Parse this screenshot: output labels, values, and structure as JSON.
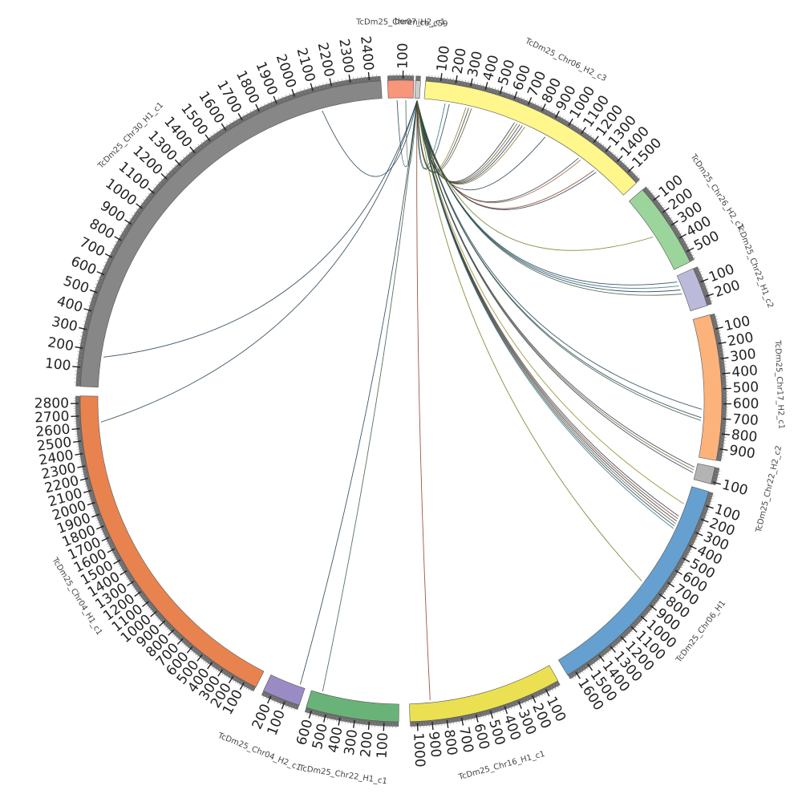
{
  "diagram": {
    "type": "circos",
    "segments": [
      {
        "id": "chr30",
        "label": "TcDm25_Chr30_H1_c1",
        "color": "#878787",
        "max": 2460,
        "ticks": [
          100,
          200,
          300,
          400,
          500,
          600,
          700,
          800,
          900,
          1000,
          1100,
          1200,
          1300,
          1400,
          1500,
          1600,
          1700,
          1800,
          1900,
          2000,
          2100,
          2200,
          2300,
          2400
        ]
      },
      {
        "id": "chr07",
        "label": "TcDm25_Chr07_H2_c1",
        "color": "#f7967a",
        "max": 170,
        "ticks": [
          100
        ]
      },
      {
        "id": "beren",
        "label": "berenice_c59",
        "color": "#cccccc",
        "max": 10,
        "ticks": []
      },
      {
        "id": "chr06h2",
        "label": "TcDm25_Chr06_H2_c3",
        "color": "#fff68c",
        "max": 1590,
        "ticks": [
          100,
          200,
          300,
          400,
          500,
          600,
          700,
          800,
          900,
          1000,
          1100,
          1200,
          1300,
          1400,
          1500
        ]
      },
      {
        "id": "chr26",
        "label": "TcDm25_Chr26_H2_c1",
        "color": "#9cd59c",
        "max": 570,
        "ticks": [
          100,
          200,
          300,
          400,
          500
        ]
      },
      {
        "id": "chr22h1c2",
        "label": "TcDm25_Chr22_H1_c2",
        "color": "#bcbada",
        "max": 260,
        "ticks": [
          100,
          200
        ]
      },
      {
        "id": "chr17",
        "label": "TcDm25_Chr17_H2_c1",
        "color": "#fcb27b",
        "max": 980,
        "ticks": [
          100,
          200,
          300,
          400,
          500,
          600,
          700,
          800,
          900
        ]
      },
      {
        "id": "chr22h2c2",
        "label": "TcDm25_Chr22_H2_c2",
        "color": "#b3b3b3",
        "max": 115,
        "ticks": [
          100
        ]
      },
      {
        "id": "chr06h1",
        "label": "TcDm25_Chr06_H1",
        "color": "#66a0d0",
        "max": 1660,
        "ticks": [
          100,
          200,
          300,
          400,
          500,
          600,
          700,
          800,
          900,
          1000,
          1100,
          1200,
          1300,
          1400,
          1500,
          1600
        ]
      },
      {
        "id": "chr16",
        "label": "TcDm25_Chr16_H1_c1",
        "color": "#ebe051",
        "max": 1050,
        "ticks": [
          100,
          200,
          300,
          400,
          500,
          600,
          700,
          800,
          900,
          1000
        ]
      },
      {
        "id": "chr22h1c1",
        "label": "TcDm25_Chr22_H1_c1",
        "color": "#6ab378",
        "max": 640,
        "ticks": [
          100,
          200,
          300,
          400,
          500,
          600
        ]
      },
      {
        "id": "chr04h2",
        "label": "TcDm25_Chr04_H2_c1",
        "color": "#9a8bc5",
        "max": 260,
        "ticks": [
          100,
          200
        ]
      },
      {
        "id": "chr04h1",
        "label": "TcDm25_Chr04_H1_c1",
        "color": "#e8834f",
        "max": 2860,
        "ticks": [
          100,
          200,
          300,
          400,
          500,
          600,
          700,
          800,
          900,
          1000,
          1100,
          1200,
          1300,
          1400,
          1500,
          1600,
          1700,
          1800,
          1900,
          2000,
          2100,
          2200,
          2300,
          2400,
          2500,
          2600,
          2700,
          2800
        ]
      }
    ],
    "links": [
      {
        "from": [
          "beren",
          5
        ],
        "to": [
          "chr30",
          2120
        ],
        "color": "#1f3b4d"
      },
      {
        "from": [
          "beren",
          5
        ],
        "to": [
          "chr30",
          170
        ],
        "color": "#1f3b4d"
      },
      {
        "from": [
          "beren",
          5
        ],
        "to": [
          "chr04h1",
          2640
        ],
        "color": "#1f3b4d"
      },
      {
        "from": [
          "beren",
          5
        ],
        "to": [
          "chr07",
          60
        ],
        "color": "#1f3b4d"
      },
      {
        "from": [
          "beren",
          5
        ],
        "to": [
          "chr07",
          120
        ],
        "color": "#3a5a40"
      },
      {
        "from": [
          "beren",
          5
        ],
        "to": [
          "chr06h2",
          150
        ],
        "color": "#2a6f7f"
      },
      {
        "from": [
          "beren",
          5
        ],
        "to": [
          "chr06h2",
          180
        ],
        "color": "#1f3b4d"
      },
      {
        "from": [
          "beren",
          5
        ],
        "to": [
          "chr06h2",
          300
        ],
        "color": "#8b6d1f"
      },
      {
        "from": [
          "beren",
          5
        ],
        "to": [
          "chr06h2",
          320
        ],
        "color": "#1f3b4d"
      },
      {
        "from": [
          "beren",
          5
        ],
        "to": [
          "chr06h2",
          340
        ],
        "color": "#5c4a1a"
      },
      {
        "from": [
          "beren",
          5
        ],
        "to": [
          "chr06h2",
          660
        ],
        "color": "#1f3b4d"
      },
      {
        "from": [
          "beren",
          5
        ],
        "to": [
          "chr06h2",
          680
        ],
        "color": "#7a5a1a"
      },
      {
        "from": [
          "beren",
          5
        ],
        "to": [
          "chr06h2",
          700
        ],
        "color": "#3a3a3a"
      },
      {
        "from": [
          "beren",
          5
        ],
        "to": [
          "chr06h2",
          720
        ],
        "color": "#1f3b4d"
      },
      {
        "from": [
          "beren",
          5
        ],
        "to": [
          "chr06h2",
          740
        ],
        "color": "#8b6d1f"
      },
      {
        "from": [
          "beren",
          5
        ],
        "to": [
          "chr06h2",
          900
        ],
        "color": "#1f3b4d"
      },
      {
        "from": [
          "beren",
          5
        ],
        "to": [
          "chr06h2",
          1180
        ],
        "color": "#1f3b4d"
      },
      {
        "from": [
          "beren",
          5
        ],
        "to": [
          "chr06h2",
          1200
        ],
        "color": "#a0522d"
      },
      {
        "from": [
          "beren",
          5
        ],
        "to": [
          "chr06h2",
          1320
        ],
        "color": "#8b3a1f"
      },
      {
        "from": [
          "beren",
          5
        ],
        "to": [
          "chr06h2",
          1340
        ],
        "color": "#1f3b4d"
      },
      {
        "from": [
          "beren",
          5
        ],
        "to": [
          "chr26",
          300
        ],
        "color": "#6b7a1f"
      },
      {
        "from": [
          "beren",
          5
        ],
        "to": [
          "chr22h1c2",
          40
        ],
        "color": "#1f3b4d"
      },
      {
        "from": [
          "beren",
          5
        ],
        "to": [
          "chr22h1c2",
          70
        ],
        "color": "#2a6f7f"
      },
      {
        "from": [
          "beren",
          5
        ],
        "to": [
          "chr22h1c2",
          100
        ],
        "color": "#1f3b4d"
      },
      {
        "from": [
          "beren",
          5
        ],
        "to": [
          "chr22h1c2",
          130
        ],
        "color": "#3a5a40"
      },
      {
        "from": [
          "beren",
          5
        ],
        "to": [
          "chr17",
          640
        ],
        "color": "#1f3b4d"
      },
      {
        "from": [
          "beren",
          5
        ],
        "to": [
          "chr17",
          700
        ],
        "color": "#1f3b4d"
      },
      {
        "from": [
          "beren",
          5
        ],
        "to": [
          "chr17",
          720
        ],
        "color": "#3a5a40"
      },
      {
        "from": [
          "beren",
          5
        ],
        "to": [
          "chr22h2c2",
          30
        ],
        "color": "#1f3b4d"
      },
      {
        "from": [
          "beren",
          5
        ],
        "to": [
          "chr22h2c2",
          50
        ],
        "color": "#7a5a1a"
      },
      {
        "from": [
          "beren",
          5
        ],
        "to": [
          "chr22h2c2",
          70
        ],
        "color": "#1f3b4d"
      },
      {
        "from": [
          "beren",
          5
        ],
        "to": [
          "chr06h1",
          140
        ],
        "color": "#8b8b1f"
      },
      {
        "from": [
          "beren",
          5
        ],
        "to": [
          "chr06h1",
          240
        ],
        "color": "#1f3b4d"
      },
      {
        "from": [
          "beren",
          5
        ],
        "to": [
          "chr06h1",
          260
        ],
        "color": "#8b3a1f"
      },
      {
        "from": [
          "beren",
          5
        ],
        "to": [
          "chr06h1",
          280
        ],
        "color": "#1f3b4d"
      },
      {
        "from": [
          "beren",
          5
        ],
        "to": [
          "chr06h1",
          300
        ],
        "color": "#5c4a1a"
      },
      {
        "from": [
          "beren",
          5
        ],
        "to": [
          "chr06h1",
          320
        ],
        "color": "#1f3b4d"
      },
      {
        "from": [
          "beren",
          5
        ],
        "to": [
          "chr06h1",
          340
        ],
        "color": "#2a6f7f"
      },
      {
        "from": [
          "beren",
          5
        ],
        "to": [
          "chr06h1",
          800
        ],
        "color": "#6b7a1f"
      },
      {
        "from": [
          "beren",
          5
        ],
        "to": [
          "chr16",
          900
        ],
        "color": "#8b3a1f"
      },
      {
        "from": [
          "beren",
          5
        ],
        "to": [
          "chr22h1c1",
          560
        ],
        "color": "#3a5a40"
      },
      {
        "from": [
          "beren",
          5
        ],
        "to": [
          "chr04h2",
          40
        ],
        "color": "#1f3b4d"
      }
    ]
  }
}
